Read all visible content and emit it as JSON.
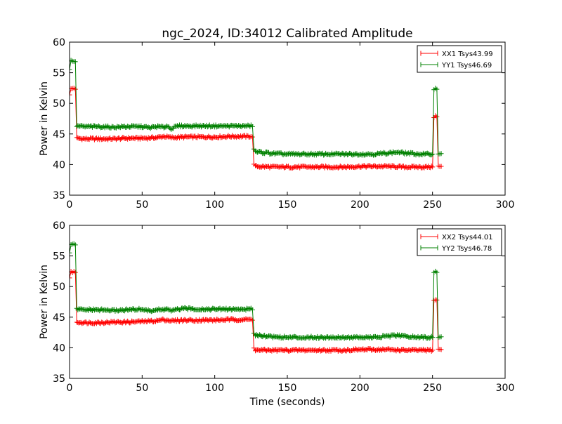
{
  "figure": {
    "title": "ngc_2024, ID:34012 Calibrated Amplitude",
    "xlabel": "Time (seconds)"
  },
  "chart_data": [
    {
      "type": "line",
      "title": "ngc_2024, ID:34012 Calibrated Amplitude",
      "xlabel": "",
      "ylabel": "Power in Kelvin",
      "xlim": [
        0,
        300
      ],
      "ylim": [
        35,
        60
      ],
      "xticks": [
        0,
        50,
        100,
        150,
        200,
        250,
        300
      ],
      "yticks": [
        35,
        40,
        45,
        50,
        55,
        60
      ],
      "grid": false,
      "legend_position": "top-right",
      "series": [
        {
          "name": "XX1 Tsys43.99",
          "color": "#ff0000",
          "marker": "+",
          "points": [
            [
              0,
              51.5
            ],
            [
              1,
              52.3
            ],
            [
              2,
              52.4
            ],
            [
              3,
              52.5
            ],
            [
              4,
              52.3
            ],
            [
              5,
              44.3
            ],
            [
              10,
              44.2
            ],
            [
              20,
              44.2
            ],
            [
              30,
              44.2
            ],
            [
              40,
              44.3
            ],
            [
              50,
              44.3
            ],
            [
              60,
              44.4
            ],
            [
              65,
              44.6
            ],
            [
              70,
              44.4
            ],
            [
              80,
              44.5
            ],
            [
              90,
              44.5
            ],
            [
              100,
              44.5
            ],
            [
              110,
              44.6
            ],
            [
              120,
              44.6
            ],
            [
              125,
              44.6
            ],
            [
              126,
              44.5
            ],
            [
              127,
              40.2
            ],
            [
              128,
              39.7
            ],
            [
              140,
              39.6
            ],
            [
              150,
              39.6
            ],
            [
              160,
              39.6
            ],
            [
              170,
              39.6
            ],
            [
              180,
              39.6
            ],
            [
              190,
              39.6
            ],
            [
              200,
              39.7
            ],
            [
              210,
              39.7
            ],
            [
              220,
              39.7
            ],
            [
              230,
              39.6
            ],
            [
              240,
              39.6
            ],
            [
              250,
              39.6
            ],
            [
              251,
              47.8
            ],
            [
              252,
              47.9
            ],
            [
              253,
              47.8
            ],
            [
              254,
              39.7
            ],
            [
              255,
              39.7
            ],
            [
              256,
              39.7
            ]
          ]
        },
        {
          "name": "YY1 Tsys46.69",
          "color": "#008000",
          "marker": "+",
          "points": [
            [
              0,
              55.5
            ],
            [
              1,
              56.9
            ],
            [
              2,
              57.0
            ],
            [
              3,
              56.9
            ],
            [
              4,
              56.8
            ],
            [
              5,
              46.3
            ],
            [
              10,
              46.2
            ],
            [
              20,
              46.2
            ],
            [
              30,
              46.1
            ],
            [
              40,
              46.2
            ],
            [
              50,
              46.2
            ],
            [
              55,
              46.0
            ],
            [
              60,
              46.2
            ],
            [
              65,
              46.1
            ],
            [
              67,
              46.3
            ],
            [
              70,
              45.9
            ],
            [
              75,
              46.3
            ],
            [
              80,
              46.3
            ],
            [
              90,
              46.3
            ],
            [
              100,
              46.3
            ],
            [
              110,
              46.3
            ],
            [
              120,
              46.3
            ],
            [
              125,
              46.3
            ],
            [
              126,
              46.2
            ],
            [
              127,
              42.5
            ],
            [
              128,
              42.1
            ],
            [
              140,
              41.8
            ],
            [
              150,
              41.7
            ],
            [
              160,
              41.7
            ],
            [
              170,
              41.7
            ],
            [
              180,
              41.7
            ],
            [
              190,
              41.7
            ],
            [
              200,
              41.7
            ],
            [
              210,
              41.7
            ],
            [
              220,
              41.9
            ],
            [
              225,
              42.0
            ],
            [
              230,
              41.9
            ],
            [
              240,
              41.7
            ],
            [
              250,
              41.7
            ],
            [
              251,
              52.4
            ],
            [
              252,
              52.5
            ],
            [
              253,
              52.3
            ],
            [
              254,
              41.8
            ],
            [
              255,
              41.8
            ],
            [
              256,
              41.8
            ]
          ]
        }
      ]
    },
    {
      "type": "line",
      "title": "",
      "xlabel": "Time (seconds)",
      "ylabel": "Power in Kelvin",
      "xlim": [
        0,
        300
      ],
      "ylim": [
        35,
        60
      ],
      "xticks": [
        0,
        50,
        100,
        150,
        200,
        250,
        300
      ],
      "yticks": [
        35,
        40,
        45,
        50,
        55,
        60
      ],
      "grid": false,
      "legend_position": "top-right",
      "series": [
        {
          "name": "XX2 Tsys44.01",
          "color": "#ff0000",
          "marker": "+",
          "points": [
            [
              0,
              51.5
            ],
            [
              1,
              52.3
            ],
            [
              2,
              52.4
            ],
            [
              3,
              52.5
            ],
            [
              4,
              52.3
            ],
            [
              5,
              44.2
            ],
            [
              10,
              44.1
            ],
            [
              20,
              44.1
            ],
            [
              30,
              44.2
            ],
            [
              40,
              44.2
            ],
            [
              50,
              44.3
            ],
            [
              60,
              44.4
            ],
            [
              65,
              44.6
            ],
            [
              70,
              44.4
            ],
            [
              80,
              44.5
            ],
            [
              90,
              44.5
            ],
            [
              100,
              44.5
            ],
            [
              110,
              44.6
            ],
            [
              120,
              44.6
            ],
            [
              125,
              44.6
            ],
            [
              126,
              44.5
            ],
            [
              127,
              40.1
            ],
            [
              128,
              39.6
            ],
            [
              140,
              39.6
            ],
            [
              150,
              39.6
            ],
            [
              160,
              39.6
            ],
            [
              170,
              39.6
            ],
            [
              180,
              39.6
            ],
            [
              190,
              39.6
            ],
            [
              200,
              39.7
            ],
            [
              210,
              39.7
            ],
            [
              220,
              39.7
            ],
            [
              230,
              39.6
            ],
            [
              240,
              39.6
            ],
            [
              250,
              39.6
            ],
            [
              251,
              47.8
            ],
            [
              252,
              47.9
            ],
            [
              253,
              47.8
            ],
            [
              254,
              39.7
            ],
            [
              255,
              39.7
            ],
            [
              256,
              39.7
            ]
          ]
        },
        {
          "name": "YY2 Tsys46.78",
          "color": "#008000",
          "marker": "+",
          "points": [
            [
              0,
              55.5
            ],
            [
              1,
              56.9
            ],
            [
              2,
              57.0
            ],
            [
              3,
              56.9
            ],
            [
              4,
              56.8
            ],
            [
              5,
              46.3
            ],
            [
              10,
              46.2
            ],
            [
              20,
              46.2
            ],
            [
              30,
              46.1
            ],
            [
              40,
              46.2
            ],
            [
              50,
              46.3
            ],
            [
              55,
              46.0
            ],
            [
              60,
              46.2
            ],
            [
              65,
              46.2
            ],
            [
              67,
              46.4
            ],
            [
              70,
              46.0
            ],
            [
              75,
              46.3
            ],
            [
              80,
              46.4
            ],
            [
              90,
              46.3
            ],
            [
              100,
              46.3
            ],
            [
              110,
              46.3
            ],
            [
              120,
              46.3
            ],
            [
              125,
              46.3
            ],
            [
              126,
              46.2
            ],
            [
              127,
              42.5
            ],
            [
              128,
              42.1
            ],
            [
              140,
              41.8
            ],
            [
              150,
              41.7
            ],
            [
              160,
              41.7
            ],
            [
              170,
              41.7
            ],
            [
              180,
              41.7
            ],
            [
              190,
              41.7
            ],
            [
              200,
              41.7
            ],
            [
              210,
              41.7
            ],
            [
              220,
              41.9
            ],
            [
              225,
              42.0
            ],
            [
              230,
              41.9
            ],
            [
              240,
              41.7
            ],
            [
              250,
              41.7
            ],
            [
              251,
              52.4
            ],
            [
              252,
              52.5
            ],
            [
              253,
              52.3
            ],
            [
              254,
              41.8
            ],
            [
              255,
              41.8
            ],
            [
              256,
              41.8
            ]
          ]
        }
      ]
    }
  ]
}
